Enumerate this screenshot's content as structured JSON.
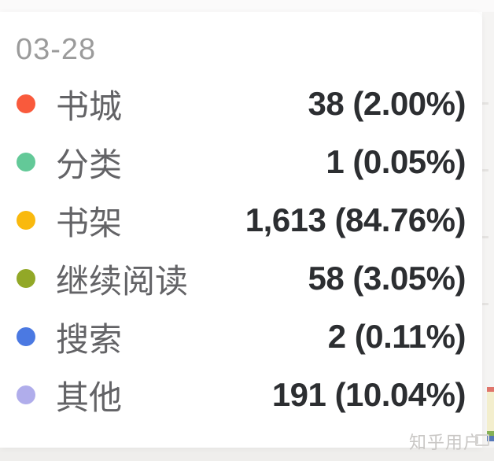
{
  "chart_data": {
    "type": "table",
    "title": "03-28",
    "categories": [
      "书城",
      "分类",
      "书架",
      "继续阅读",
      "搜索",
      "其他"
    ],
    "values": [
      38,
      1,
      1613,
      58,
      2,
      191
    ],
    "percentages": [
      "2.00%",
      "0.05%",
      "84.76%",
      "3.05%",
      "0.11%",
      "10.04%"
    ],
    "legend_colors": [
      "#f95a3c",
      "#63c998",
      "#f9b90e",
      "#92a827",
      "#4b79e2",
      "#b0adeb"
    ]
  },
  "tooltip": {
    "date": "03-28",
    "rows": [
      {
        "label": "书城",
        "value_display": "38 (2.00%)",
        "value": 38,
        "percent": "2.00%",
        "color": "#f95a3c"
      },
      {
        "label": "分类",
        "value_display": "1 (0.05%)",
        "value": 1,
        "percent": "0.05%",
        "color": "#63c998"
      },
      {
        "label": "书架",
        "value_display": "1,613 (84.76%)",
        "value": 1613,
        "percent": "84.76%",
        "color": "#f9b90e"
      },
      {
        "label": "继续阅读",
        "value_display": "58 (3.05%)",
        "value": 58,
        "percent": "3.05%",
        "color": "#92a827"
      },
      {
        "label": "搜索",
        "value_display": "2 (0.11%)",
        "value": 2,
        "percent": "0.11%",
        "color": "#4b79e2"
      },
      {
        "label": "其他",
        "value_display": "191 (10.04%)",
        "value": 191,
        "percent": "10.04%",
        "color": "#b0adeb"
      }
    ]
  },
  "watermark": {
    "text": "知乎用户"
  },
  "background": {
    "edge_sliver_bands": [
      {
        "color": "#e0756b",
        "height": 6
      },
      {
        "color": "#f3eecd",
        "height": 50
      },
      {
        "color": "#86b156",
        "height": 6
      },
      {
        "color": "#5577b8",
        "height": 7
      }
    ]
  }
}
